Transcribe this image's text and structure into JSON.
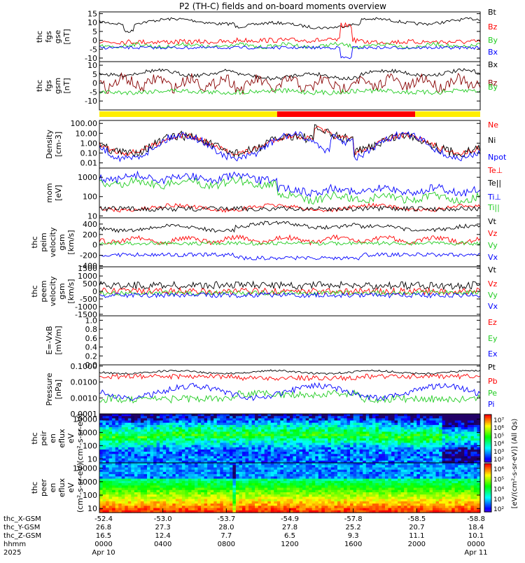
{
  "title": "P2 (TH-C) fields and on-board moments overview",
  "colors": {
    "black": "#000000",
    "red": "#ff0000",
    "green": "#22cc22",
    "blue": "#0000ff",
    "yellow": "#ffee00",
    "darkred": "#880000"
  },
  "colorbar": {
    "label": "[eV/(cm²-s-sr-eV)] (All Qs)",
    "upper_ticks": [
      "10⁷",
      "10⁶",
      "10⁵",
      "10⁴",
      "10³",
      "10²"
    ],
    "lower_ticks": [
      "10⁶",
      "10⁵",
      "10⁴",
      "10³",
      "10²"
    ]
  },
  "chart_data": [
    {
      "name": "fgs_gse",
      "type": "line",
      "ylabel": "thc fgs gse [nT]",
      "ylim": [
        -12,
        16
      ],
      "yticks": [
        "15",
        "10",
        "5",
        "0",
        "-5",
        "-10"
      ],
      "ytick_values": [
        15,
        10,
        5,
        0,
        -5,
        -10
      ],
      "legend": [
        {
          "label": "Bt",
          "color": "#000000"
        },
        {
          "label": "Bz",
          "color": "#ff0000"
        },
        {
          "label": "By",
          "color": "#22cc22"
        },
        {
          "label": "Bx",
          "color": "#0000ff"
        }
      ]
    },
    {
      "name": "fgs_gsm",
      "type": "line",
      "ylabel": "thc fgs gsm [nT]",
      "ylim": [
        -15,
        12
      ],
      "yticks": [
        "10",
        "5",
        "0",
        "-5",
        "-10"
      ],
      "ytick_values": [
        10,
        5,
        0,
        -5,
        -10
      ],
      "legend": [
        {
          "label": "Bx",
          "color": "#000000"
        },
        {
          "label": "Bz",
          "color": "#880000"
        },
        {
          "label": "By",
          "color": "#22cc22"
        }
      ]
    },
    {
      "name": "region_bar",
      "type": "bar",
      "segments": [
        {
          "from": 0,
          "to": 11.2,
          "color": "#ffee00"
        },
        {
          "from": 11.2,
          "to": 19.9,
          "color": "#ff0000"
        },
        {
          "from": 19.9,
          "to": 24,
          "color": "#ffee00"
        }
      ]
    },
    {
      "name": "density",
      "type": "line",
      "ylabel": "Density [cm-3]",
      "scale": "log",
      "ylim": [
        0.003,
        200
      ],
      "yticks": [
        "100.00",
        "10.00",
        "1.00",
        "0.10",
        "0.01"
      ],
      "ytick_values": [
        100,
        10,
        1,
        0.1,
        0.01
      ],
      "legend": [
        {
          "label": "Ne",
          "color": "#ff0000"
        },
        {
          "label": "Ni",
          "color": "#000000"
        },
        {
          "label": "Npot",
          "color": "#0000ff"
        }
      ]
    },
    {
      "name": "temperature",
      "type": "line",
      "ylabel": "mom [eV]",
      "scale": "log",
      "ylim": [
        8,
        3000
      ],
      "yticks": [
        "1000",
        "100",
        "10"
      ],
      "ytick_values": [
        1000,
        100,
        10
      ],
      "legend": [
        {
          "label": "Te⊥",
          "color": "#ff0000"
        },
        {
          "label": "Te||",
          "color": "#000000"
        },
        {
          "label": "Ti⊥",
          "color": "#0000ff"
        },
        {
          "label": "Ti||",
          "color": "#22cc22"
        }
      ]
    },
    {
      "name": "peim_velocity",
      "type": "line",
      "ylabel": "thc peim velocity gsm [km/s]",
      "ylim": [
        -420,
        520
      ],
      "yticks": [
        "400",
        "200",
        "0",
        "-200",
        "-400"
      ],
      "ytick_values": [
        400,
        200,
        0,
        -200,
        -400
      ],
      "legend": [
        {
          "label": "Vt",
          "color": "#000000"
        },
        {
          "label": "Vz",
          "color": "#ff0000"
        },
        {
          "label": "Vy",
          "color": "#22cc22"
        },
        {
          "label": "Vx",
          "color": "#0000ff"
        }
      ]
    },
    {
      "name": "peem_velocity",
      "type": "line",
      "ylabel": "thc peem velocity gsm [km/s]",
      "ylim": [
        -1600,
        1600
      ],
      "yticks": [
        "1500",
        "1000",
        "500",
        "0",
        "-500",
        "-1000",
        "-1500"
      ],
      "ytick_values": [
        1500,
        1000,
        500,
        0,
        -500,
        -1000,
        -1500
      ],
      "legend": [
        {
          "label": "Vt",
          "color": "#000000"
        },
        {
          "label": "Vz",
          "color": "#ff0000"
        },
        {
          "label": "Vy",
          "color": "#22cc22"
        },
        {
          "label": "Vx",
          "color": "#0000ff"
        }
      ]
    },
    {
      "name": "efield",
      "type": "line",
      "ylabel": "E=-VxB [mV/m]",
      "ylim": [
        0,
        1.1
      ],
      "yticks": [
        "1.0",
        "0.8",
        "0.6",
        "0.4",
        "0.2",
        "0.0"
      ],
      "ytick_values": [
        1,
        0.8,
        0.6,
        0.4,
        0.2,
        0
      ],
      "legend": [
        {
          "label": "Ez",
          "color": "#ff0000"
        },
        {
          "label": "Ey",
          "color": "#22cc22"
        },
        {
          "label": "Ex",
          "color": "#0000ff"
        }
      ]
    },
    {
      "name": "pressure",
      "type": "line",
      "ylabel": "Pressure [nPa]",
      "scale": "log",
      "ylim": [
        0.0001,
        0.12
      ],
      "yticks": [
        "0.1000",
        "0.0100",
        "0.0010",
        "0.0001"
      ],
      "ytick_values": [
        0.1,
        0.01,
        0.001,
        0.0001
      ],
      "legend": [
        {
          "label": "Pt",
          "color": "#000000"
        },
        {
          "label": "Pb",
          "color": "#ff0000"
        },
        {
          "label": "Pe",
          "color": "#22cc22"
        },
        {
          "label": "Pi",
          "color": "#0000ff"
        }
      ]
    },
    {
      "name": "peir_spectrogram",
      "type": "heatmap",
      "ylabel": "thc peir en eflux eV (cm²-s-sr-eV)",
      "scale": "log",
      "ylim": [
        5,
        25000
      ],
      "yticks": [
        "10000",
        "1000",
        "100",
        "10"
      ],
      "ytick_values": [
        10000,
        1000,
        100,
        10
      ]
    },
    {
      "name": "peer_spectrogram",
      "type": "heatmap",
      "ylabel": "thc peer en eflux eV (cm²-s-sr-eV)",
      "scale": "log",
      "ylim": [
        5,
        25000
      ],
      "yticks": [
        "10000",
        "1000",
        "100",
        "10"
      ],
      "ytick_values": [
        10000,
        1000,
        100,
        10
      ]
    }
  ],
  "xaxis": {
    "range_hours": [
      0,
      24
    ],
    "tick_hours": [
      0,
      4,
      8,
      12,
      16,
      20,
      24
    ],
    "row_labels": [
      "thc_X-GSM",
      "thc_Y-GSM",
      "thc_Z-GSM",
      "hhmm",
      "2025"
    ],
    "rows": [
      [
        "-52.4",
        "-53.0",
        "-53.7",
        "-54.9",
        "-57.8",
        "-58.5",
        "-58.8"
      ],
      [
        "26.8",
        "27.3",
        "28.0",
        "27.8",
        "25.2",
        "20.7",
        "18.4"
      ],
      [
        "16.5",
        "12.4",
        "7.7",
        "6.5",
        "9.3",
        "11.1",
        "10.1"
      ],
      [
        "0000",
        "0400",
        "0800",
        "1200",
        "1600",
        "2000",
        "0000"
      ],
      [
        "Apr 10",
        "",
        "",
        "",
        "",
        "",
        "Apr 11"
      ]
    ]
  }
}
